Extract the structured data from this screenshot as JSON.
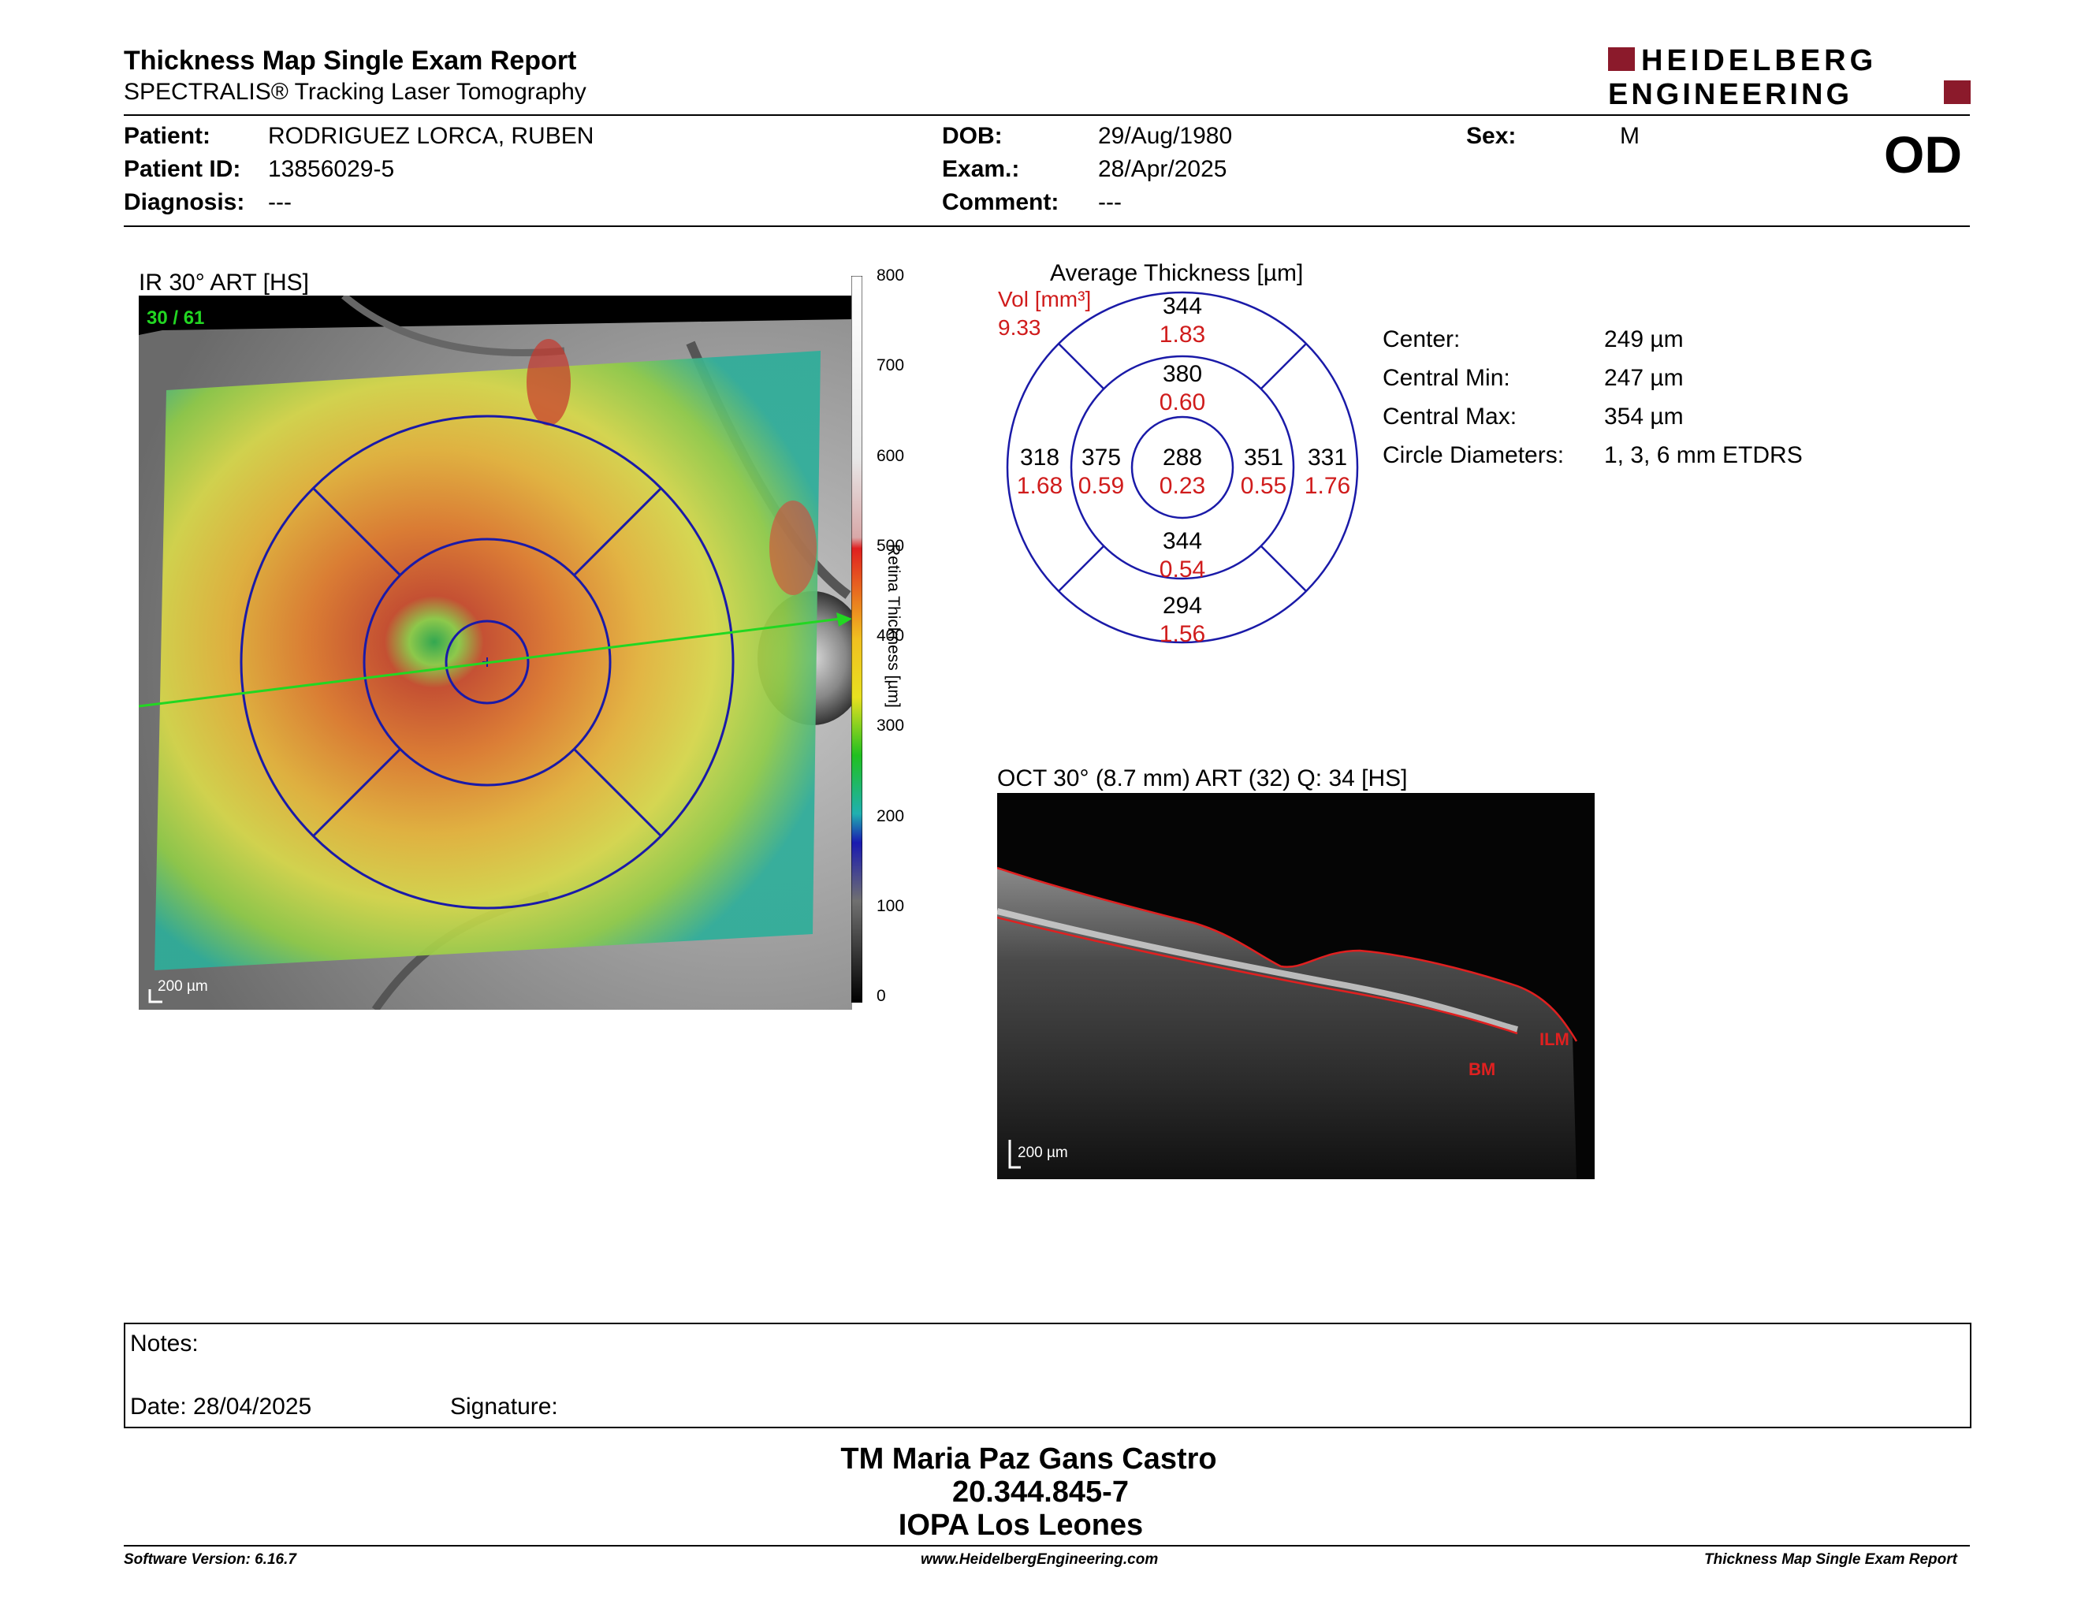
{
  "header": {
    "title": "Thickness Map Single Exam Report",
    "subtitle": "SPECTRALIS® Tracking Laser Tomography",
    "logo_line1": "HEIDELBERG",
    "logo_line2": "ENGINEERING",
    "eye": "OD",
    "brand_color": "#8b1a2b"
  },
  "patient": {
    "patient_label": "Patient:",
    "patient_value": "RODRIGUEZ LORCA, RUBEN",
    "id_label": "Patient ID:",
    "id_value": "13856029-5",
    "diagnosis_label": "Diagnosis:",
    "diagnosis_value": "---",
    "dob_label": "DOB:",
    "dob_value": "29/Aug/1980",
    "exam_label": "Exam.:",
    "exam_value": "28/Apr/2025",
    "comment_label": "Comment:",
    "comment_value": "---",
    "sex_label": "Sex:",
    "sex_value": "M"
  },
  "ir_image": {
    "title": "IR 30° ART [HS]",
    "frames": "30 / 61",
    "scale_bar": "200 µm",
    "colorbar_label": "Retina Thickness [µm]",
    "colorbar_ticks": [
      "800",
      "700",
      "600",
      "500",
      "400",
      "300",
      "200",
      "100",
      "0"
    ]
  },
  "etdrs": {
    "title": "Average Thickness [µm]",
    "vol_label": "Vol [mm³]",
    "vol_total": "9.33",
    "sectors": {
      "outer_superior": {
        "thickness": "344",
        "volume": "1.83"
      },
      "inner_superior": {
        "thickness": "380",
        "volume": "0.60"
      },
      "outer_temporal": {
        "thickness": "318",
        "volume": "1.68"
      },
      "inner_temporal": {
        "thickness": "375",
        "volume": "0.59"
      },
      "center": {
        "thickness": "288",
        "volume": "0.23"
      },
      "inner_nasal": {
        "thickness": "351",
        "volume": "0.55"
      },
      "outer_nasal": {
        "thickness": "331",
        "volume": "1.76"
      },
      "inner_inferior": {
        "thickness": "344",
        "volume": "0.54"
      },
      "outer_inferior": {
        "thickness": "294",
        "volume": "1.56"
      }
    }
  },
  "stats": {
    "center_label": "Center:",
    "center_value": "249 µm",
    "min_label": "Central Min:",
    "min_value": "247 µm",
    "max_label": "Central Max:",
    "max_value": "354 µm",
    "diam_label": "Circle Diameters:",
    "diam_value": "1, 3, 6 mm ETDRS"
  },
  "oct_image": {
    "title": "OCT 30° (8.7 mm) ART (32) Q: 34 [HS]",
    "ilm_label": "ILM",
    "bm_label": "BM",
    "scale_bar": "200 µm"
  },
  "notes": {
    "notes_label": "Notes:",
    "date_label": "Date: 28/04/2025",
    "signature_label": "Signature:"
  },
  "signature_block": {
    "name": "TM Maria Paz Gans Castro",
    "id": "20.344.845-7",
    "institution": "IOPA Los Leones"
  },
  "footer": {
    "software": "Software Version: 6.16.7",
    "website": "www.HeidelbergEngineering.com",
    "report": "Thickness Map Single Exam Report"
  }
}
